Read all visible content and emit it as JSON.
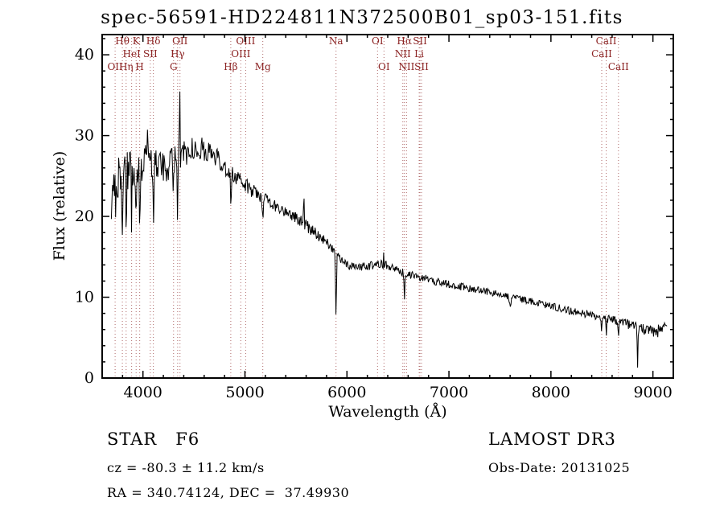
{
  "footer": {
    "classification": "STAR   F6",
    "survey": "LAMOST DR3",
    "cz": "cz = -80.3 ± 11.2 km/s",
    "obs_date": "Obs-Date: 20131025",
    "ra_dec": "RA = 340.74124, DEC =  37.49930"
  },
  "chart_data": {
    "type": "line",
    "title": "spec-56591-HD224811N372500B01_sp03-151.fits",
    "xlabel": "Wavelength (Å)",
    "ylabel": "Flux (relative)",
    "xlim": [
      3600,
      9200
    ],
    "ylim": [
      0,
      42.5
    ],
    "xticks": [
      4000,
      5000,
      6000,
      7000,
      8000,
      9000
    ],
    "yticks": [
      0,
      10,
      20,
      30,
      40
    ],
    "xtick_minor_step": 200,
    "ytick_minor_step": 2,
    "legend": "none",
    "grid": false,
    "line_color": "#000000",
    "marker_color": "#b06a6a",
    "marker_label_color": "#8b2222",
    "sample_range": [
      3690,
      9140
    ],
    "sample_step": 6,
    "noise_seed": 77,
    "spectral_lines": [
      {
        "label": "Hθ",
        "wavelength": 3798,
        "row": 1
      },
      {
        "label": "K",
        "wavelength": 3933,
        "row": 1
      },
      {
        "label": "Hδ",
        "wavelength": 4102,
        "row": 1
      },
      {
        "label": "OII",
        "wavelength": 4363,
        "row": 1
      },
      {
        "label": "OIII",
        "wavelength": 5007,
        "row": 1
      },
      {
        "label": "Na",
        "wavelength": 5893,
        "row": 1
      },
      {
        "label": "OI",
        "wavelength": 6300,
        "row": 1
      },
      {
        "label": "Hα",
        "wavelength": 6563,
        "row": 1
      },
      {
        "label": "SII",
        "wavelength": 6716,
        "row": 1
      },
      {
        "label": "CaII",
        "wavelength": 8542,
        "row": 1
      },
      {
        "label": "HeI",
        "wavelength": 3889,
        "row": 2
      },
      {
        "label": "SII",
        "wavelength": 4072,
        "row": 2
      },
      {
        "label": "Hγ",
        "wavelength": 4340,
        "row": 2
      },
      {
        "label": "OIII",
        "wavelength": 4959,
        "row": 2
      },
      {
        "label": "NII",
        "wavelength": 6548,
        "row": 2
      },
      {
        "label": "Li",
        "wavelength": 6708,
        "row": 2
      },
      {
        "label": "CaII",
        "wavelength": 8498,
        "row": 2
      },
      {
        "label": "OII",
        "wavelength": 3727,
        "row": 3
      },
      {
        "label": "Hη",
        "wavelength": 3835,
        "row": 3
      },
      {
        "label": "H",
        "wavelength": 3968,
        "row": 3
      },
      {
        "label": "G",
        "wavelength": 4300,
        "row": 3
      },
      {
        "label": "Hβ",
        "wavelength": 4861,
        "row": 3
      },
      {
        "label": "Mg",
        "wavelength": 5175,
        "row": 3
      },
      {
        "label": "OI",
        "wavelength": 6363,
        "row": 3
      },
      {
        "label": "NII",
        "wavelength": 6584,
        "row": 3
      },
      {
        "label": "SII",
        "wavelength": 6731,
        "row": 3
      },
      {
        "label": "CaII",
        "wavelength": 8662,
        "row": 3
      }
    ],
    "continuum": [
      [
        3690,
        19
      ],
      [
        3720,
        23
      ],
      [
        3760,
        25
      ],
      [
        3800,
        25.5
      ],
      [
        3850,
        26
      ],
      [
        3900,
        26.5
      ],
      [
        3950,
        26.5
      ],
      [
        4000,
        27
      ],
      [
        4060,
        26.5
      ],
      [
        4120,
        26.5
      ],
      [
        4180,
        26
      ],
      [
        4240,
        26.3
      ],
      [
        4300,
        26.8
      ],
      [
        4360,
        27.2
      ],
      [
        4420,
        27.8
      ],
      [
        4480,
        28.3
      ],
      [
        4540,
        28.6
      ],
      [
        4600,
        28.3
      ],
      [
        4660,
        27.8
      ],
      [
        4720,
        27.2
      ],
      [
        4780,
        26.5
      ],
      [
        4840,
        25.8
      ],
      [
        4900,
        24.8
      ],
      [
        4960,
        24.2
      ],
      [
        5020,
        23.7
      ],
      [
        5100,
        23.1
      ],
      [
        5200,
        22.2
      ],
      [
        5300,
        21.3
      ],
      [
        5400,
        20.6
      ],
      [
        5500,
        19.9
      ],
      [
        5600,
        18.9
      ],
      [
        5700,
        17.9
      ],
      [
        5800,
        16.9
      ],
      [
        5880,
        15.9
      ],
      [
        5960,
        14.4
      ],
      [
        6020,
        13.8
      ],
      [
        6100,
        13.7
      ],
      [
        6200,
        13.9
      ],
      [
        6300,
        14.1
      ],
      [
        6400,
        13.9
      ],
      [
        6500,
        13.3
      ],
      [
        6600,
        12.8
      ],
      [
        6700,
        12.5
      ],
      [
        6800,
        12.2
      ],
      [
        6900,
        11.9
      ],
      [
        7000,
        11.6
      ],
      [
        7100,
        11.35
      ],
      [
        7200,
        11.1
      ],
      [
        7300,
        10.85
      ],
      [
        7400,
        10.6
      ],
      [
        7500,
        10.3
      ],
      [
        7600,
        10.05
      ],
      [
        7700,
        9.8
      ],
      [
        7800,
        9.5
      ],
      [
        7900,
        9.2
      ],
      [
        8000,
        8.9
      ],
      [
        8100,
        8.6
      ],
      [
        8200,
        8.3
      ],
      [
        8300,
        8.05
      ],
      [
        8400,
        7.8
      ],
      [
        8500,
        7.55
      ],
      [
        8600,
        7.25
      ],
      [
        8700,
        6.9
      ],
      [
        8800,
        6.5
      ],
      [
        8900,
        6.0
      ],
      [
        9000,
        5.7
      ],
      [
        9080,
        5.9
      ],
      [
        9140,
        6.2
      ]
    ],
    "noise_amplitude": [
      [
        3690,
        5.0
      ],
      [
        3780,
        4.0
      ],
      [
        3860,
        3.0
      ],
      [
        3960,
        2.6
      ],
      [
        4100,
        2.2
      ],
      [
        4300,
        1.9
      ],
      [
        4500,
        1.5
      ],
      [
        4700,
        1.3
      ],
      [
        4900,
        1.05
      ],
      [
        5100,
        0.95
      ],
      [
        5400,
        0.85
      ],
      [
        5700,
        0.75
      ],
      [
        6000,
        0.6
      ],
      [
        6400,
        0.55
      ],
      [
        6800,
        0.5
      ],
      [
        7200,
        0.45
      ],
      [
        7600,
        0.42
      ],
      [
        8000,
        0.45
      ],
      [
        8400,
        0.5
      ],
      [
        8800,
        0.6
      ],
      [
        9140,
        0.85
      ]
    ],
    "absorption_features": [
      {
        "x": 3750,
        "depth": 6,
        "width": 8
      },
      {
        "x": 3798,
        "depth": 7,
        "width": 7
      },
      {
        "x": 3835,
        "depth": 7,
        "width": 7
      },
      {
        "x": 3889,
        "depth": 6,
        "width": 7
      },
      {
        "x": 3933,
        "depth": 9,
        "width": 8
      },
      {
        "x": 3968,
        "depth": 9,
        "width": 8
      },
      {
        "x": 4102,
        "depth": 8,
        "width": 8
      },
      {
        "x": 4300,
        "depth": 3,
        "width": 10
      },
      {
        "x": 4340,
        "depth": 6.5,
        "width": 8
      },
      {
        "x": 4861,
        "depth": 5,
        "width": 8
      },
      {
        "x": 5175,
        "depth": 2.5,
        "width": 10
      },
      {
        "x": 5893,
        "depth": 8.5,
        "width": 9
      },
      {
        "x": 6563,
        "depth": 3.2,
        "width": 8
      },
      {
        "x": 7600,
        "depth": 1.2,
        "width": 15
      },
      {
        "x": 8498,
        "depth": 1.5,
        "width": 7
      },
      {
        "x": 8542,
        "depth": 2.0,
        "width": 7
      },
      {
        "x": 8662,
        "depth": 2.0,
        "width": 7
      },
      {
        "x": 8850,
        "depth": 5.0,
        "width": 8
      }
    ],
    "emission_spikes": [
      {
        "x": 4046,
        "height": 5,
        "width": 5
      },
      {
        "x": 4360,
        "height": 10.5,
        "width": 6
      },
      {
        "x": 5577,
        "height": 5,
        "width": 5
      },
      {
        "x": 6360,
        "height": 1.8,
        "width": 5
      }
    ]
  }
}
